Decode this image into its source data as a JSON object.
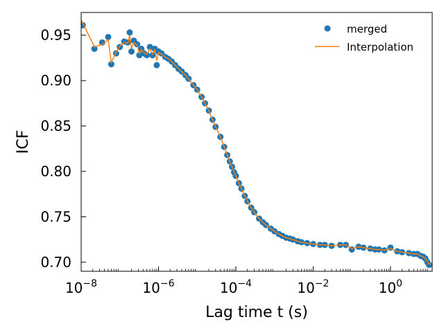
{
  "chart_data": {
    "type": "scatter",
    "title": "",
    "xlabel": "Lag time t (s)",
    "ylabel": "ICF",
    "x_scale": "log",
    "xlim": [
      1e-08,
      12
    ],
    "ylim": [
      0.69,
      0.975
    ],
    "grid": false,
    "legend_position": "top-right",
    "x_ticks": [
      {
        "value": 1e-08,
        "base": "10",
        "exp": "−8"
      },
      {
        "value": 1e-06,
        "base": "10",
        "exp": "−6"
      },
      {
        "value": 0.0001,
        "base": "10",
        "exp": "−4"
      },
      {
        "value": 0.01,
        "base": "10",
        "exp": "−2"
      },
      {
        "value": 1,
        "base": "10",
        "exp": "0"
      }
    ],
    "y_ticks": [
      {
        "value": 0.7,
        "label": "0.70"
      },
      {
        "value": 0.75,
        "label": "0.75"
      },
      {
        "value": 0.8,
        "label": "0.80"
      },
      {
        "value": 0.85,
        "label": "0.85"
      },
      {
        "value": 0.9,
        "label": "0.90"
      },
      {
        "value": 0.95,
        "label": "0.95"
      }
    ],
    "series": [
      {
        "name": "merged",
        "kind": "scatter",
        "color": "#1f77b4",
        "x": [
          1.1e-08,
          2.2e-08,
          3.5e-08,
          5e-08,
          6e-08,
          8e-08,
          1e-07,
          1.3e-07,
          1.6e-07,
          1.8e-07,
          2e-07,
          2.3e-07,
          2.8e-07,
          3.2e-07,
          3.6e-07,
          4.2e-07,
          5e-07,
          6e-07,
          7e-07,
          8e-07,
          9e-07,
          1e-06,
          1.2e-06,
          1.5e-06,
          1.8e-06,
          2.2e-06,
          2.7e-06,
          3.3e-06,
          4e-06,
          5e-06,
          6e-06,
          8e-06,
          1e-05,
          1.3e-05,
          1.6e-05,
          2e-05,
          2.5e-05,
          3e-05,
          4e-05,
          5e-05,
          6e-05,
          7e-05,
          8e-05,
          9e-05,
          0.0001,
          0.00012,
          0.00014,
          0.00017,
          0.0002,
          0.00025,
          0.0003,
          0.0004,
          0.0005,
          0.0006,
          0.0008,
          0.001,
          0.0013,
          0.0016,
          0.002,
          0.0025,
          0.003,
          0.004,
          0.005,
          0.007,
          0.01,
          0.015,
          0.02,
          0.03,
          0.05,
          0.07,
          0.1,
          0.15,
          0.2,
          0.3,
          0.4,
          0.5,
          0.7,
          1.0,
          1.5,
          2.0,
          3.0,
          4.0,
          5.0,
          6.0,
          7.0,
          8.0,
          9.0,
          10.0
        ],
        "y": [
          0.961,
          0.935,
          0.942,
          0.948,
          0.918,
          0.93,
          0.937,
          0.943,
          0.942,
          0.953,
          0.932,
          0.944,
          0.94,
          0.928,
          0.935,
          0.93,
          0.928,
          0.937,
          0.928,
          0.935,
          0.917,
          0.932,
          0.93,
          0.926,
          0.924,
          0.921,
          0.917,
          0.913,
          0.91,
          0.906,
          0.902,
          0.895,
          0.89,
          0.882,
          0.875,
          0.867,
          0.857,
          0.849,
          0.838,
          0.827,
          0.818,
          0.811,
          0.805,
          0.799,
          0.795,
          0.787,
          0.781,
          0.773,
          0.767,
          0.76,
          0.755,
          0.748,
          0.744,
          0.741,
          0.737,
          0.734,
          0.731,
          0.729,
          0.727,
          0.726,
          0.725,
          0.723,
          0.722,
          0.721,
          0.72,
          0.719,
          0.719,
          0.718,
          0.719,
          0.719,
          0.714,
          0.717,
          0.716,
          0.715,
          0.714,
          0.714,
          0.713,
          0.716,
          0.712,
          0.711,
          0.71,
          0.709,
          0.709,
          0.707,
          0.706,
          0.704,
          0.7,
          0.697
        ]
      },
      {
        "name": "Interpolation",
        "kind": "line",
        "color": "#ff7f0e",
        "x": [
          1e-08,
          2.2e-08,
          3.5e-08,
          5e-08,
          6e-08,
          8e-08,
          1e-07,
          1.3e-07,
          1.6e-07,
          1.8e-07,
          2e-07,
          2.3e-07,
          2.8e-07,
          3.2e-07,
          3.6e-07,
          4.2e-07,
          5e-07,
          6e-07,
          7e-07,
          8e-07,
          9e-07,
          1e-06,
          1.2e-06,
          1.5e-06,
          1.8e-06,
          2.2e-06,
          2.7e-06,
          3.3e-06,
          4e-06,
          5e-06,
          6e-06,
          8e-06,
          1e-05,
          1.3e-05,
          1.6e-05,
          2e-05,
          2.5e-05,
          3e-05,
          4e-05,
          5e-05,
          6e-05,
          7e-05,
          8e-05,
          9e-05,
          0.0001,
          0.00012,
          0.00014,
          0.00017,
          0.0002,
          0.00025,
          0.0003,
          0.0004,
          0.0005,
          0.0006,
          0.0008,
          0.001,
          0.0013,
          0.0016,
          0.002,
          0.0025,
          0.003,
          0.004,
          0.005,
          0.007,
          0.01,
          0.015,
          0.02,
          0.03,
          0.05,
          0.07,
          0.1,
          0.15,
          0.2,
          0.3,
          0.4,
          0.5,
          0.7,
          1.0,
          1.5,
          2.0,
          3.0,
          4.0,
          5.0,
          6.0,
          7.0,
          8.0,
          9.0,
          10.0,
          12.0
        ],
        "y": [
          0.967,
          0.937,
          0.94,
          0.945,
          0.92,
          0.931,
          0.938,
          0.942,
          0.941,
          0.95,
          0.935,
          0.942,
          0.939,
          0.93,
          0.934,
          0.931,
          0.929,
          0.935,
          0.929,
          0.934,
          0.922,
          0.931,
          0.929,
          0.926,
          0.924,
          0.921,
          0.917,
          0.913,
          0.91,
          0.906,
          0.902,
          0.895,
          0.89,
          0.882,
          0.875,
          0.867,
          0.857,
          0.849,
          0.838,
          0.827,
          0.818,
          0.811,
          0.805,
          0.799,
          0.795,
          0.787,
          0.781,
          0.773,
          0.767,
          0.76,
          0.755,
          0.748,
          0.744,
          0.741,
          0.737,
          0.734,
          0.731,
          0.729,
          0.727,
          0.726,
          0.725,
          0.723,
          0.722,
          0.721,
          0.72,
          0.719,
          0.719,
          0.718,
          0.719,
          0.719,
          0.715,
          0.717,
          0.716,
          0.715,
          0.714,
          0.714,
          0.713,
          0.715,
          0.712,
          0.711,
          0.71,
          0.709,
          0.709,
          0.707,
          0.706,
          0.704,
          0.701,
          0.698,
          0.698
        ]
      }
    ]
  }
}
